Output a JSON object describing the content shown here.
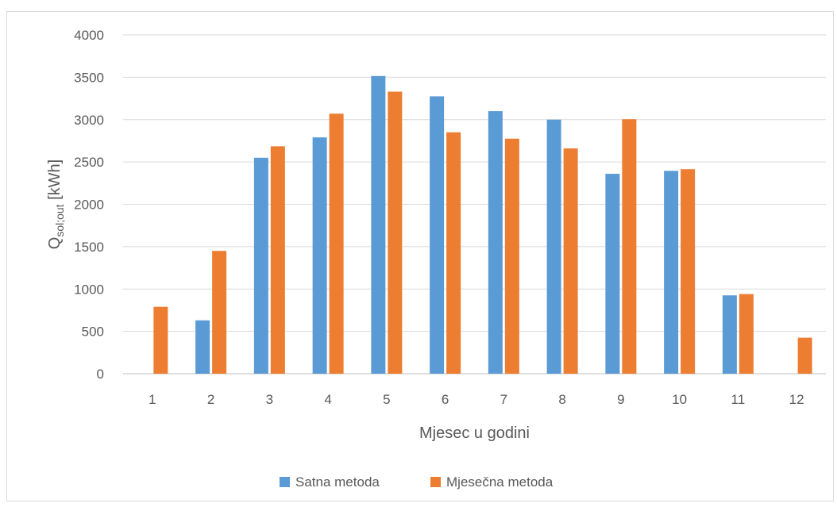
{
  "chart_data": {
    "type": "bar",
    "categories": [
      "1",
      "2",
      "3",
      "4",
      "5",
      "6",
      "7",
      "8",
      "9",
      "10",
      "11",
      "12"
    ],
    "series": [
      {
        "name": "Satna metoda",
        "color": "#5b9bd5",
        "values": [
          0,
          630,
          2550,
          2790,
          3515,
          3275,
          3100,
          3000,
          2360,
          2395,
          925,
          0
        ]
      },
      {
        "name": "Mjesečna metoda",
        "color": "#ed7d31",
        "values": [
          790,
          1450,
          2685,
          3070,
          3330,
          2850,
          2775,
          2660,
          3005,
          2415,
          940,
          425
        ]
      }
    ],
    "xlabel": "Mjesec u godini",
    "ylabel": {
      "main": "Q",
      "subscript": "sol;out",
      "unit": " [kWh]"
    },
    "ylim": [
      0,
      4000
    ],
    "yticks": [
      0,
      500,
      1000,
      1500,
      2000,
      2500,
      3000,
      3500,
      4000
    ],
    "grid": true,
    "legend_position": "bottom"
  }
}
